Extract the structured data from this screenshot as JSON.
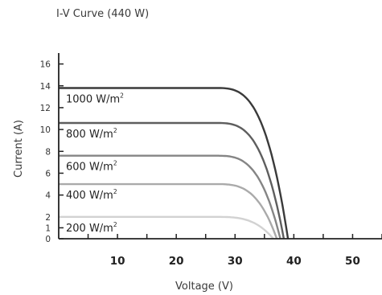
{
  "chart_data": {
    "type": "line",
    "title": "I-V Curve (440 W)",
    "xlabel": "Voltage (V)",
    "ylabel": "Current (A)",
    "xlim": [
      0,
      55
    ],
    "ylim": [
      0,
      17
    ],
    "x_ticks": [
      10,
      20,
      30,
      40,
      50
    ],
    "y_ticks": [
      0,
      1,
      2,
      4,
      6,
      8,
      10,
      12,
      14,
      16
    ],
    "grid": false,
    "legend": "none (inline labels)",
    "series": [
      {
        "name": "1000 W/m",
        "sup": "2",
        "isc": 13.8,
        "v_knee": 26.6,
        "voc": 39.0,
        "color": "#3a3a3a"
      },
      {
        "name": "800 W/m",
        "sup": "2",
        "isc": 10.6,
        "v_knee": 26.6,
        "voc": 38.3,
        "color": "#5e5e5e"
      },
      {
        "name": "600 W/m",
        "sup": "2",
        "isc": 7.6,
        "v_knee": 26.6,
        "voc": 37.7,
        "color": "#858585"
      },
      {
        "name": "400 W/m",
        "sup": "2",
        "isc": 5.0,
        "v_knee": 26.6,
        "voc": 37.1,
        "color": "#aaaaaa"
      },
      {
        "name": "200 W/m",
        "sup": "2",
        "isc": 2.0,
        "v_knee": 26.6,
        "voc": 36.5,
        "color": "#d2d2d2"
      }
    ]
  }
}
